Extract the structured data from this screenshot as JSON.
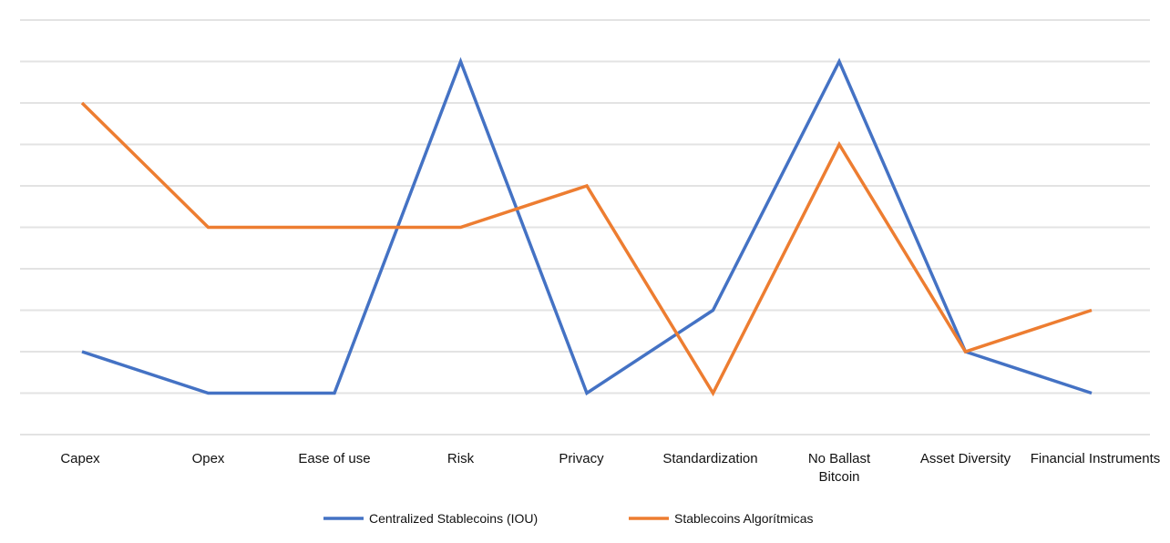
{
  "chart_data": {
    "type": "line",
    "title": "",
    "xlabel": "",
    "ylabel": "",
    "categories": [
      [
        "Capex"
      ],
      [
        "Opex"
      ],
      [
        "Ease of use"
      ],
      [
        "Risk"
      ],
      [
        "Privacy"
      ],
      [
        "Standardization"
      ],
      [
        "No Ballast",
        "Bitcoin"
      ],
      [
        "Asset Diversity"
      ],
      [
        "Financial Instruments"
      ]
    ],
    "ylim": [
      0,
      10
    ],
    "grid": true,
    "y_tick_labels_shown": false,
    "legend_position": "bottom-center",
    "series": [
      {
        "name": "Centralized Stablecoins (IOU)",
        "color": "#4472c4",
        "values": [
          2,
          1,
          1,
          9,
          1,
          3,
          9,
          2,
          1
        ]
      },
      {
        "name": "Stablecoins Algorítmicas",
        "color": "#ed7d31",
        "values": [
          8,
          5,
          5,
          5,
          6,
          1,
          7,
          2,
          3
        ]
      }
    ]
  }
}
